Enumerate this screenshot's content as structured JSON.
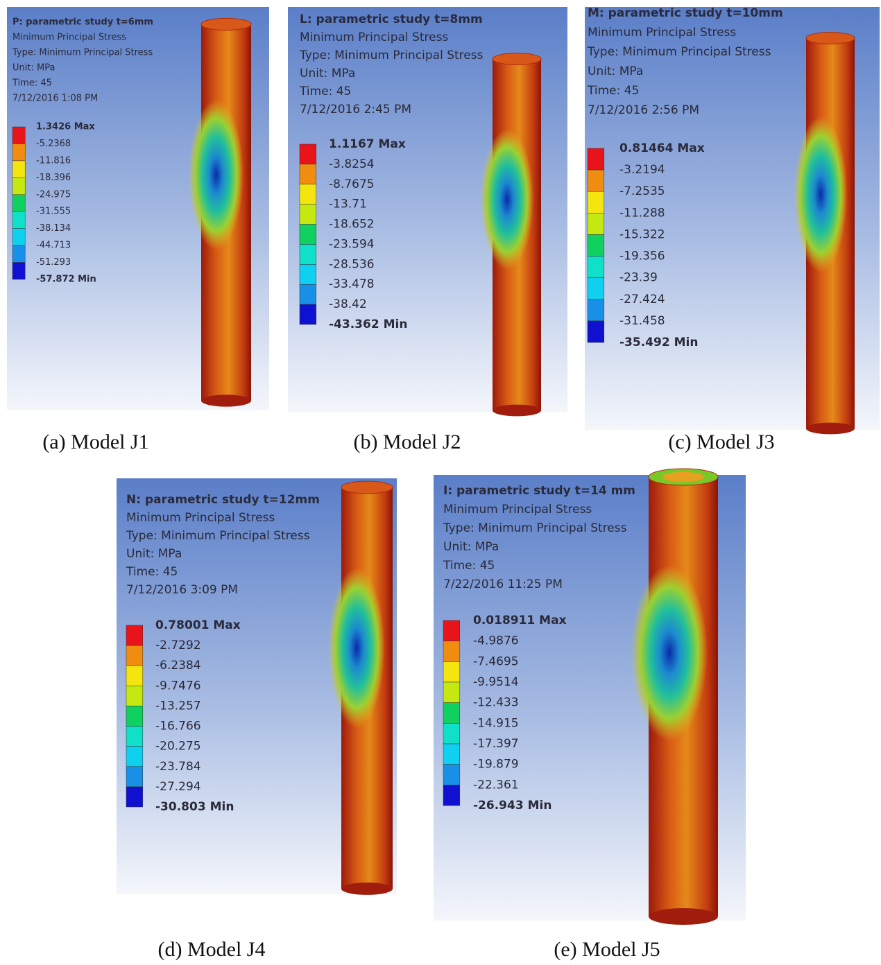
{
  "panels": [
    {
      "title": "P: parametric study t=6mm",
      "lines": [
        "Minimum Principal Stress",
        "Type: Minimum Principal Stress",
        "Unit: MPa",
        "Time: 45",
        "7/12/2016 1:08 PM"
      ],
      "legend": [
        "1.3426 Max",
        "-5.2368",
        "-11.816",
        "-18.396",
        "-24.975",
        "-31.555",
        "-38.134",
        "-44.713",
        "-51.293",
        "-57.872 Min"
      ],
      "caption": "(a) Model J1"
    },
    {
      "title": "L: parametric study t=8mm",
      "lines": [
        "Minimum Principal Stress",
        "Type: Minimum Principal Stress",
        "Unit: MPa",
        "Time: 45",
        "7/12/2016 2:45 PM"
      ],
      "legend": [
        "1.1167 Max",
        "-3.8254",
        "-8.7675",
        "-13.71",
        "-18.652",
        "-23.594",
        "-28.536",
        "-33.478",
        "-38.42",
        "-43.362 Min"
      ],
      "caption": "(b) Model J2"
    },
    {
      "title": "M: parametric study t=10mm",
      "lines": [
        "Minimum Principal Stress",
        "Type: Minimum Principal Stress",
        "Unit: MPa",
        "Time: 45",
        "7/12/2016 2:56 PM"
      ],
      "legend": [
        "0.81464 Max",
        "-3.2194",
        "-7.2535",
        "-11.288",
        "-15.322",
        "-19.356",
        "-23.39",
        "-27.424",
        "-31.458",
        "-35.492 Min"
      ],
      "caption": "(c) Model J3"
    },
    {
      "title": "N: parametric study t=12mm",
      "lines": [
        "Minimum Principal Stress",
        "Type: Minimum Principal Stress",
        "Unit: MPa",
        "Time: 45",
        "7/12/2016 3:09 PM"
      ],
      "legend": [
        "0.78001 Max",
        "-2.7292",
        "-6.2384",
        "-9.7476",
        "-13.257",
        "-16.766",
        "-20.275",
        "-23.784",
        "-27.294",
        "-30.803 Min"
      ],
      "caption": "(d) Model J4"
    },
    {
      "title": "I: parametric study t=14 mm",
      "lines": [
        "Minimum Principal Stress",
        "Type: Minimum Principal Stress",
        "Unit: MPa",
        "Time: 45",
        "7/22/2016 11:25 PM"
      ],
      "legend": [
        "0.018911 Max",
        "-4.9876",
        "-7.4695",
        "-9.9514",
        "-12.433",
        "-14.915",
        "-17.397",
        "-19.879",
        "-22.361",
        "-26.943 Min"
      ],
      "caption": "(e) Model J5"
    }
  ]
}
